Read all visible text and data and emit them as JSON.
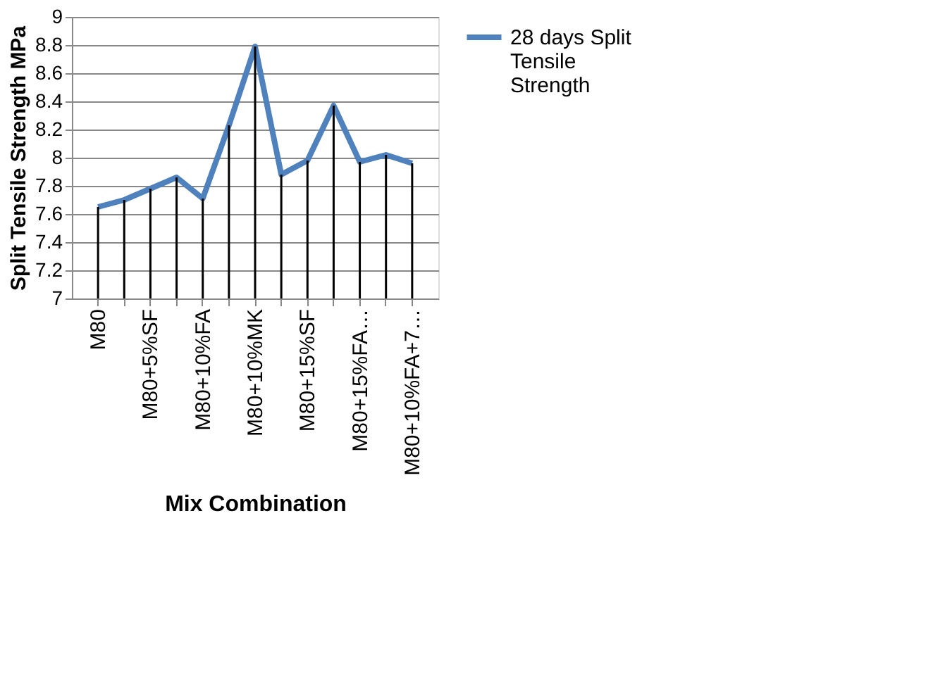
{
  "chart_data": {
    "type": "line",
    "xlabel": "Mix Combination",
    "ylabel": "Split Tensile Strength MPa",
    "categories": [
      "M80",
      null,
      "M80+5%SF",
      null,
      "M80+10%FA",
      null,
      "M80+10%MK",
      null,
      "M80+15%SF",
      null,
      "M80+15%FA…",
      null,
      "M80+10%FA+7…"
    ],
    "series": [
      {
        "type": "bar",
        "color": "#000000",
        "values": [
          7.65,
          7.7,
          7.78,
          7.86,
          7.71,
          8.23,
          8.79,
          7.88,
          7.98,
          8.37,
          7.97,
          8.02,
          7.96
        ]
      },
      {
        "name": "28 days Split Tensile Strength",
        "color": "#4f81bd",
        "values": [
          7.65,
          7.7,
          7.78,
          7.86,
          7.71,
          8.23,
          8.79,
          7.88,
          7.98,
          8.37,
          7.97,
          8.02,
          7.96
        ]
      }
    ],
    "ylim": [
      7,
      9
    ],
    "yticks": [
      7,
      7.2,
      7.4,
      7.6,
      7.8,
      8,
      8.2,
      8.4,
      8.6,
      8.8,
      9
    ],
    "grid": "y",
    "legend": "right",
    "marker": "none",
    "line_style": "solid"
  }
}
